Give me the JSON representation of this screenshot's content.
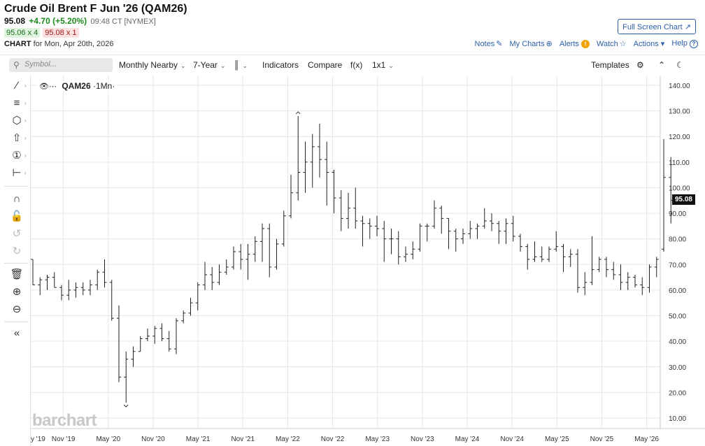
{
  "header": {
    "title": "Crude Oil Brent F Jun '26 (QAM26)",
    "last": "95.08",
    "change": "+4.70 (+5.20%)",
    "time": "09:48 CT [NYMEX]",
    "bid": "95.06 x 4",
    "ask": "95.08 x 1",
    "chart_label": "CHART",
    "chart_date": "for Mon, Apr 20th, 2026",
    "full_screen": "Full Screen Chart",
    "links": {
      "notes": "Notes",
      "my_charts": "My Charts",
      "alerts": "Alerts",
      "watch": "Watch",
      "actions": "Actions",
      "help": "Help"
    }
  },
  "toolbar": {
    "search_placeholder": "Symbol...",
    "period": "Monthly Nearby",
    "range": "7-Year",
    "indicators": "Indicators",
    "compare": "Compare",
    "fx": "f(x)",
    "layout": "1x1",
    "templates": "Templates"
  },
  "legend": {
    "symbol": "QAM26",
    "interval": "·1Mn·"
  },
  "watermark": "barchart",
  "colors": {
    "bar": "#222222",
    "grid": "#e6e6e6",
    "accent": "#2c5fa8",
    "up": "#1a8a1a",
    "down": "#a01a1a"
  },
  "chart_data": {
    "type": "ohlc",
    "interval": "monthly",
    "ylim": [
      5,
      145
    ],
    "y_ticks": [
      "140.00",
      "130.00",
      "120.00",
      "110.00",
      "100.00",
      "90.00",
      "80.00",
      "70.00",
      "60.00",
      "50.00",
      "40.00",
      "30.00",
      "20.00",
      "10.00"
    ],
    "x_ticks": [
      "y '19",
      "Nov '19",
      "May '20",
      "Nov '20",
      "May '21",
      "Nov '21",
      "May '22",
      "Nov '22",
      "May '23",
      "Nov '23",
      "May '24",
      "Nov '24",
      "May '25",
      "Nov '25",
      "May '26"
    ],
    "last_price": "95.08",
    "bars": [
      {
        "o": 72,
        "h": 72,
        "l": 62,
        "c": 62
      },
      {
        "o": 62,
        "h": 65,
        "l": 58,
        "c": 64
      },
      {
        "o": 64,
        "h": 66,
        "l": 60,
        "c": 65
      },
      {
        "o": 65,
        "h": 67,
        "l": 61,
        "c": 61
      },
      {
        "o": 61,
        "h": 62,
        "l": 56,
        "c": 58
      },
      {
        "o": 58,
        "h": 64,
        "l": 56,
        "c": 60
      },
      {
        "o": 60,
        "h": 63,
        "l": 57,
        "c": 61
      },
      {
        "o": 61,
        "h": 63,
        "l": 58,
        "c": 60
      },
      {
        "o": 60,
        "h": 64,
        "l": 58,
        "c": 62
      },
      {
        "o": 62,
        "h": 68,
        "l": 60,
        "c": 67
      },
      {
        "o": 67,
        "h": 72,
        "l": 61,
        "c": 63
      },
      {
        "o": 63,
        "h": 64,
        "l": 48,
        "c": 49
      },
      {
        "o": 49,
        "h": 54,
        "l": 24,
        "c": 26
      },
      {
        "o": 26,
        "h": 36,
        "l": 16,
        "c": 33
      },
      {
        "o": 33,
        "h": 38,
        "l": 30,
        "c": 36
      },
      {
        "o": 36,
        "h": 42,
        "l": 36,
        "c": 41
      },
      {
        "o": 41,
        "h": 45,
        "l": 40,
        "c": 42
      },
      {
        "o": 42,
        "h": 46,
        "l": 39,
        "c": 45
      },
      {
        "o": 45,
        "h": 47,
        "l": 40,
        "c": 41
      },
      {
        "o": 41,
        "h": 44,
        "l": 36,
        "c": 37
      },
      {
        "o": 37,
        "h": 49,
        "l": 35,
        "c": 48
      },
      {
        "o": 48,
        "h": 52,
        "l": 47,
        "c": 51
      },
      {
        "o": 51,
        "h": 57,
        "l": 50,
        "c": 55
      },
      {
        "o": 55,
        "h": 63,
        "l": 52,
        "c": 62
      },
      {
        "o": 62,
        "h": 71,
        "l": 60,
        "c": 66
      },
      {
        "o": 66,
        "h": 69,
        "l": 60,
        "c": 63
      },
      {
        "o": 63,
        "h": 70,
        "l": 62,
        "c": 67
      },
      {
        "o": 67,
        "h": 72,
        "l": 66,
        "c": 69
      },
      {
        "o": 69,
        "h": 77,
        "l": 68,
        "c": 75
      },
      {
        "o": 75,
        "h": 78,
        "l": 68,
        "c": 72
      },
      {
        "o": 72,
        "h": 78,
        "l": 64,
        "c": 74
      },
      {
        "o": 74,
        "h": 81,
        "l": 71,
        "c": 79
      },
      {
        "o": 79,
        "h": 86,
        "l": 71,
        "c": 84
      },
      {
        "o": 84,
        "h": 86,
        "l": 65,
        "c": 69
      },
      {
        "o": 69,
        "h": 80,
        "l": 68,
        "c": 78
      },
      {
        "o": 78,
        "h": 91,
        "l": 77,
        "c": 89
      },
      {
        "o": 89,
        "h": 105,
        "l": 88,
        "c": 98
      },
      {
        "o": 98,
        "h": 128,
        "l": 95,
        "c": 106
      },
      {
        "o": 106,
        "h": 118,
        "l": 98,
        "c": 110
      },
      {
        "o": 110,
        "h": 121,
        "l": 100,
        "c": 116
      },
      {
        "o": 116,
        "h": 125,
        "l": 104,
        "c": 111
      },
      {
        "o": 111,
        "h": 118,
        "l": 93,
        "c": 106
      },
      {
        "o": 106,
        "h": 107,
        "l": 90,
        "c": 96
      },
      {
        "o": 96,
        "h": 99,
        "l": 83,
        "c": 88
      },
      {
        "o": 88,
        "h": 98,
        "l": 84,
        "c": 92
      },
      {
        "o": 92,
        "h": 100,
        "l": 84,
        "c": 87
      },
      {
        "o": 87,
        "h": 89,
        "l": 77,
        "c": 86
      },
      {
        "o": 86,
        "h": 88,
        "l": 80,
        "c": 85
      },
      {
        "o": 85,
        "h": 89,
        "l": 81,
        "c": 84
      },
      {
        "o": 84,
        "h": 87,
        "l": 71,
        "c": 80
      },
      {
        "o": 80,
        "h": 84,
        "l": 74,
        "c": 80
      },
      {
        "o": 80,
        "h": 83,
        "l": 70,
        "c": 73
      },
      {
        "o": 73,
        "h": 77,
        "l": 71,
        "c": 74
      },
      {
        "o": 74,
        "h": 79,
        "l": 72,
        "c": 76
      },
      {
        "o": 76,
        "h": 86,
        "l": 75,
        "c": 85
      },
      {
        "o": 85,
        "h": 86,
        "l": 79,
        "c": 85
      },
      {
        "o": 85,
        "h": 95,
        "l": 84,
        "c": 92
      },
      {
        "o": 92,
        "h": 93,
        "l": 82,
        "c": 88
      },
      {
        "o": 88,
        "h": 88,
        "l": 76,
        "c": 83
      },
      {
        "o": 83,
        "h": 84,
        "l": 75,
        "c": 80
      },
      {
        "o": 80,
        "h": 84,
        "l": 78,
        "c": 82
      },
      {
        "o": 82,
        "h": 87,
        "l": 80,
        "c": 84
      },
      {
        "o": 84,
        "h": 86,
        "l": 80,
        "c": 85
      },
      {
        "o": 85,
        "h": 92,
        "l": 84,
        "c": 87
      },
      {
        "o": 87,
        "h": 90,
        "l": 83,
        "c": 86
      },
      {
        "o": 86,
        "h": 87,
        "l": 78,
        "c": 83
      },
      {
        "o": 83,
        "h": 88,
        "l": 78,
        "c": 86
      },
      {
        "o": 86,
        "h": 89,
        "l": 79,
        "c": 81
      },
      {
        "o": 81,
        "h": 82,
        "l": 75,
        "c": 77
      },
      {
        "o": 77,
        "h": 78,
        "l": 68,
        "c": 72
      },
      {
        "o": 72,
        "h": 79,
        "l": 71,
        "c": 73
      },
      {
        "o": 73,
        "h": 77,
        "l": 71,
        "c": 72
      },
      {
        "o": 72,
        "h": 77,
        "l": 71,
        "c": 76
      },
      {
        "o": 76,
        "h": 83,
        "l": 75,
        "c": 77
      },
      {
        "o": 77,
        "h": 78,
        "l": 67,
        "c": 73
      },
      {
        "o": 73,
        "h": 76,
        "l": 69,
        "c": 74
      },
      {
        "o": 74,
        "h": 76,
        "l": 59,
        "c": 61
      },
      {
        "o": 61,
        "h": 67,
        "l": 58,
        "c": 63
      },
      {
        "o": 63,
        "h": 81,
        "l": 62,
        "c": 68
      },
      {
        "o": 68,
        "h": 73,
        "l": 67,
        "c": 72
      },
      {
        "o": 72,
        "h": 73,
        "l": 65,
        "c": 68
      },
      {
        "o": 68,
        "h": 71,
        "l": 64,
        "c": 66
      },
      {
        "o": 66,
        "h": 70,
        "l": 60,
        "c": 63
      },
      {
        "o": 63,
        "h": 67,
        "l": 60,
        "c": 65
      },
      {
        "o": 65,
        "h": 66,
        "l": 61,
        "c": 62
      },
      {
        "o": 62,
        "h": 65,
        "l": 58,
        "c": 61
      },
      {
        "o": 61,
        "h": 70,
        "l": 59,
        "c": 69
      },
      {
        "o": 69,
        "h": 73,
        "l": 65,
        "c": 72
      },
      {
        "o": 76,
        "h": 119,
        "l": 75,
        "c": 104
      },
      {
        "o": 104,
        "h": 112,
        "l": 86,
        "c": 95.08
      }
    ]
  }
}
